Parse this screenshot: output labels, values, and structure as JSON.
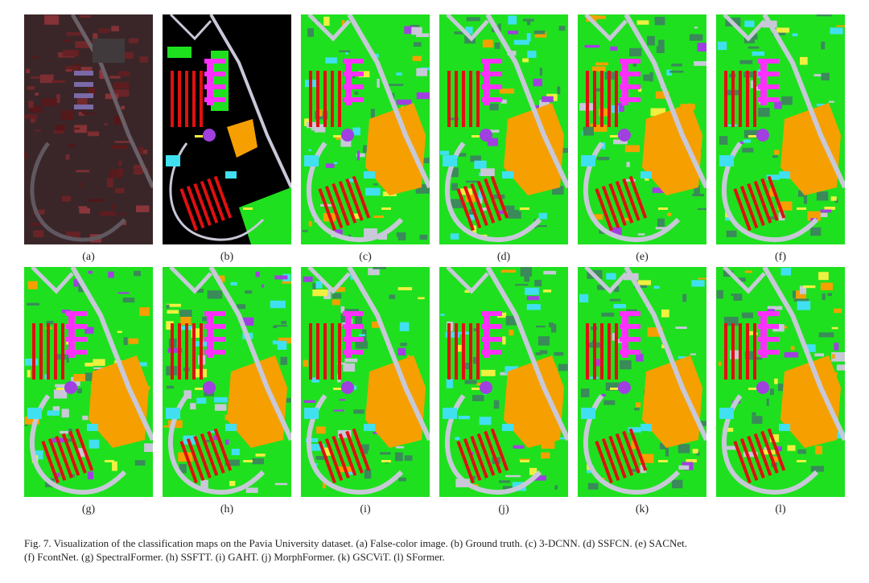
{
  "figure": {
    "panels": [
      {
        "label": "(a)",
        "kind": "false-color"
      },
      {
        "label": "(b)",
        "kind": "ground-truth"
      },
      {
        "label": "(c)",
        "kind": "classification"
      },
      {
        "label": "(d)",
        "kind": "classification"
      },
      {
        "label": "(e)",
        "kind": "classification"
      },
      {
        "label": "(f)",
        "kind": "classification"
      },
      {
        "label": "(g)",
        "kind": "classification"
      },
      {
        "label": "(h)",
        "kind": "classification"
      },
      {
        "label": "(i)",
        "kind": "classification"
      },
      {
        "label": "(j)",
        "kind": "classification"
      },
      {
        "label": "(k)",
        "kind": "classification"
      },
      {
        "label": "(l)",
        "kind": "classification"
      }
    ],
    "caption_line1": "Fig. 7.  Visualization of the classification maps on the Pavia University dataset. (a) False-color image. (b) Ground truth. (c) 3-DCNN. (d) SSFCN. (e) SACNet.",
    "caption_line2": "(f) FcontNet. (g) SpectralFormer. (h) SSFTT. (i) GAHT. (j) MorphFormer. (k) GSCViT. (l) SFormer."
  },
  "colors": {
    "meadows": "#1fe01f",
    "trees": "#3a8a5a",
    "asphalt": "#c8c8d8",
    "bare_soil": "#f5a000",
    "bricks": "#e01010",
    "painted_metal": "#ff30ff",
    "bitumen": "#a040e0",
    "gravel": "#40e0f0",
    "shadows": "#f0f040",
    "background": "#000000",
    "false_color_base": "#3a2628"
  }
}
